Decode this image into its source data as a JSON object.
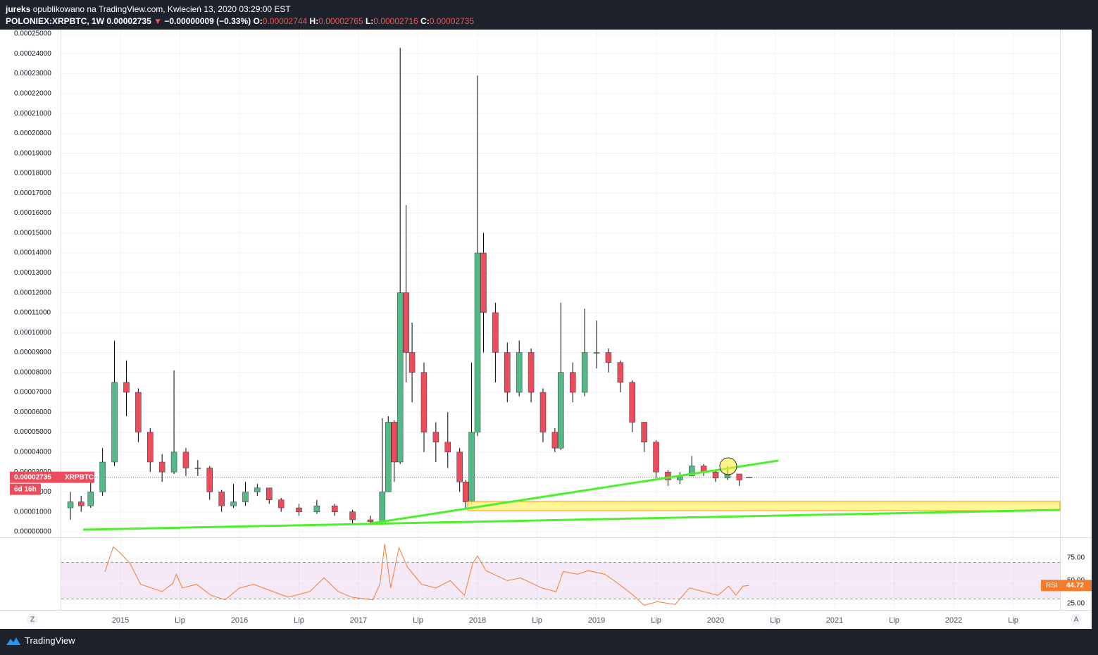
{
  "header": {
    "author": "jureks",
    "published": "opublikowano na TradingView.com, Kwiecień 13, 2020 03:29:00 EST",
    "symbol": "POLONIEX:XRPBTC, 1W",
    "price": "0.00002735",
    "arrow": "▼",
    "change": "−0.00000009 (−0.33%)",
    "ohlc": [
      {
        "key": "O:",
        "value": "0.00002744"
      },
      {
        "key": "H:",
        "value": "0.00002765"
      },
      {
        "key": "L:",
        "value": "0.00002716"
      },
      {
        "key": "C:",
        "value": "0.00002735"
      }
    ]
  },
  "chart_data": {
    "type": "candlestick",
    "symbol": "XRPBTC",
    "countdown": "6d 16h",
    "up_color": "#53b987",
    "down_color": "#eb4d5c",
    "grid": true,
    "xlim": [
      2014.503,
      2022.893
    ],
    "xticks": [
      2015,
      {
        "value": 2015.5,
        "label": "Lip"
      },
      2016,
      {
        "value": 2016.5,
        "label": "Lip"
      },
      2017,
      {
        "value": 2017.5,
        "label": "Lip"
      },
      2018,
      {
        "value": 2018.5,
        "label": "Lip"
      },
      2019,
      {
        "value": 2019.5,
        "label": "Lip"
      },
      2020,
      {
        "value": 2020.5,
        "label": "Lip"
      },
      2021,
      {
        "value": 2021.5,
        "label": "Lip"
      },
      2022,
      {
        "value": 2022.5,
        "label": "Lip"
      }
    ],
    "ylim": [
      -2.48e-06,
      0.00025212
    ],
    "yticks": [
      {
        "value": 0.00025,
        "label": "0.00025000"
      },
      {
        "value": 0.00024,
        "label": "0.00024000"
      },
      {
        "value": 0.00023,
        "label": "0.00023000"
      },
      {
        "value": 0.00022,
        "label": "0.00022000"
      },
      {
        "value": 0.00021,
        "label": "0.00021000"
      },
      {
        "value": 0.0002,
        "label": "0.00020000"
      },
      {
        "value": 0.00019,
        "label": "0.00019000"
      },
      {
        "value": 0.00018,
        "label": "0.00018000"
      },
      {
        "value": 0.00017,
        "label": "0.00017000"
      },
      {
        "value": 0.00016,
        "label": "0.00016000"
      },
      {
        "value": 0.00015,
        "label": "0.00015000"
      },
      {
        "value": 0.00014,
        "label": "0.00014000"
      },
      {
        "value": 0.00013,
        "label": "0.00013000"
      },
      {
        "value": 0.00012,
        "label": "0.00012000"
      },
      {
        "value": 0.00011,
        "label": "0.00011000"
      },
      {
        "value": 0.0001,
        "label": "0.00010000"
      },
      {
        "value": 9e-05,
        "label": "0.00009000"
      },
      {
        "value": 8e-05,
        "label": "0.00008000"
      },
      {
        "value": 7e-05,
        "label": "0.00007000"
      },
      {
        "value": 6e-05,
        "label": "0.00006000"
      },
      {
        "value": 5e-05,
        "label": "0.00005000"
      },
      {
        "value": 4e-05,
        "label": "0.00004000"
      },
      {
        "value": 3e-05,
        "label": "0.00003000"
      },
      {
        "value": 2e-05,
        "label": "0.00002000"
      },
      {
        "value": 1e-05,
        "label": "0.00001000"
      },
      {
        "value": 0,
        "label": "0.00000000"
      }
    ],
    "x": [
      2014.58,
      2014.67,
      2014.75,
      2014.85,
      2014.95,
      2015.05,
      2015.15,
      2015.25,
      2015.35,
      2015.45,
      2015.55,
      2015.65,
      2015.75,
      2015.85,
      2015.95,
      2016.05,
      2016.15,
      2016.25,
      2016.35,
      2016.5,
      2016.65,
      2016.8,
      2016.95,
      2017.1,
      2017.2,
      2017.25,
      2017.3,
      2017.35,
      2017.4,
      2017.45,
      2017.55,
      2017.65,
      2017.75,
      2017.85,
      2017.9,
      2017.95,
      2018.0,
      2018.05,
      2018.15,
      2018.25,
      2018.35,
      2018.45,
      2018.55,
      2018.65,
      2018.7,
      2018.8,
      2018.9,
      2019.0,
      2019.1,
      2019.2,
      2019.3,
      2019.4,
      2019.5,
      2019.6,
      2019.7,
      2019.8,
      2019.9,
      2020.0,
      2020.1,
      2020.2,
      2020.28
    ],
    "open": [
      1.2e-05,
      1.5e-05,
      1.3e-05,
      2e-05,
      3.5e-05,
      7.5e-05,
      7e-05,
      5e-05,
      3.5e-05,
      3e-05,
      4e-05,
      3.2e-05,
      3.2e-05,
      2e-05,
      1.3e-05,
      1.5e-05,
      2e-05,
      2.2e-05,
      1.6e-05,
      1.2e-05,
      1e-05,
      1.3e-05,
      1e-05,
      6e-06,
      5e-06,
      2e-05,
      5.5e-05,
      3.5e-05,
      0.00012,
      9e-05,
      8e-05,
      5e-05,
      4.5e-05,
      4e-05,
      2.5e-05,
      1.5e-05,
      5e-05,
      0.00014,
      0.00011,
      9e-05,
      7e-05,
      9e-05,
      7e-05,
      5e-05,
      4.2e-05,
      8e-05,
      7e-05,
      9e-05,
      9e-05,
      8.5e-05,
      7.5e-05,
      5.5e-05,
      4.5e-05,
      3e-05,
      2.6e-05,
      2.8e-05,
      3.3e-05,
      3e-05,
      2.7e-05,
      2.9e-05,
      2.744e-05
    ],
    "high": [
      2e-05,
      1.8e-05,
      2.8e-05,
      4.2e-05,
      9.6e-05,
      8.6e-05,
      7.2e-05,
      5.2e-05,
      3.9e-05,
      8.1e-05,
      4.2e-05,
      3.6e-05,
      3.3e-05,
      2.1e-05,
      2.4e-05,
      2.5e-05,
      2.4e-05,
      2.2e-05,
      1.7e-05,
      1.4e-05,
      1.6e-05,
      1.4e-05,
      1.1e-05,
      8e-06,
      5.7e-05,
      5.8e-05,
      5.6e-05,
      0.000243,
      0.000164,
      0.000105,
      8.5e-05,
      5.5e-05,
      6e-05,
      4.2e-05,
      2.6e-05,
      8.5e-05,
      0.000229,
      0.00015,
      0.000115,
      9.5e-05,
      9.6e-05,
      9.2e-05,
      7.2e-05,
      5.2e-05,
      0.000115,
      8.5e-05,
      0.000112,
      0.000106,
      9.2e-05,
      8.6e-05,
      7.6e-05,
      5.5e-05,
      4.6e-05,
      3.1e-05,
      3e-05,
      3.8e-05,
      3.4e-05,
      3.1e-05,
      3.3e-05,
      2.9e-05,
      2.765e-05
    ],
    "low": [
      6e-06,
      1e-05,
      1.2e-05,
      1.8e-05,
      3.3e-05,
      5.8e-05,
      4.5e-05,
      3e-05,
      2.5e-05,
      2.9e-05,
      2.8e-05,
      2.8e-05,
      1.6e-05,
      1e-05,
      1.2e-05,
      1.3e-05,
      1.8e-05,
      1.4e-05,
      1e-05,
      8e-06,
      9e-06,
      8e-06,
      4e-06,
      4e-06,
      5e-06,
      2e-05,
      2.5e-05,
      3.4e-05,
      7.5e-05,
      6.5e-05,
      4e-05,
      3.5e-05,
      3.2e-05,
      2e-05,
      1.1e-05,
      1.4e-05,
      4.8e-05,
      9e-05,
      7.5e-05,
      6.5e-05,
      6.8e-05,
      6.5e-05,
      4.5e-05,
      4e-05,
      4.1e-05,
      6.5e-05,
      6.8e-05,
      8.2e-05,
      8e-05,
      7e-05,
      5e-05,
      4e-05,
      2.7e-05,
      2.3e-05,
      2.4e-05,
      2.8e-05,
      2.8e-05,
      2.5e-05,
      2.6e-05,
      2.3e-05,
      2.716e-05
    ],
    "close": [
      1.5e-05,
      1.3e-05,
      2e-05,
      3.5e-05,
      7.5e-05,
      7e-05,
      5e-05,
      3.5e-05,
      3e-05,
      4e-05,
      3.2e-05,
      3.2e-05,
      2e-05,
      1.3e-05,
      1.5e-05,
      2e-05,
      2.2e-05,
      1.6e-05,
      1.2e-05,
      1e-05,
      1.3e-05,
      1e-05,
      6e-06,
      5e-06,
      2e-05,
      5.5e-05,
      3.5e-05,
      0.00012,
      9e-05,
      8e-05,
      5e-05,
      4.5e-05,
      4e-05,
      2.5e-05,
      1.5e-05,
      5e-05,
      0.00014,
      0.00011,
      9e-05,
      7e-05,
      9e-05,
      7e-05,
      5e-05,
      4.2e-05,
      8e-05,
      7e-05,
      9e-05,
      9e-05,
      8.5e-05,
      7.5e-05,
      5.5e-05,
      4.5e-05,
      3e-05,
      2.6e-05,
      2.8e-05,
      3.3e-05,
      3e-05,
      2.7e-05,
      2.9e-05,
      2.6e-05,
      2.735e-05
    ],
    "rsi": {
      "name": "RSI",
      "color": "#f57c2c",
      "band_color": "#9c27b0",
      "ylim": [
        18,
        95
      ],
      "yticks": [
        {
          "value": 75,
          "label": "75.00"
        },
        {
          "value": 50,
          "label": "50.00"
        },
        {
          "value": 25,
          "label": "25.00"
        }
      ],
      "bands": [
        30,
        70
      ],
      "x": [
        2014.87,
        2014.94,
        2015.0,
        2015.08,
        2015.17,
        2015.35,
        2015.44,
        2015.47,
        2015.52,
        2015.64,
        2015.76,
        2015.88,
        2016.0,
        2016.12,
        2016.24,
        2016.41,
        2016.59,
        2016.71,
        2016.83,
        2016.94,
        2017.12,
        2017.18,
        2017.22,
        2017.27,
        2017.34,
        2017.41,
        2017.53,
        2017.65,
        2017.77,
        2017.89,
        2017.96,
        2018.0,
        2018.07,
        2018.25,
        2018.36,
        2018.54,
        2018.66,
        2018.72,
        2018.84,
        2018.93,
        2019.07,
        2019.19,
        2019.31,
        2019.4,
        2019.51,
        2019.66,
        2019.78,
        2019.9,
        2020.02,
        2020.11,
        2020.17,
        2020.23,
        2020.28
      ],
      "values": [
        59.6,
        87,
        80,
        69,
        46,
        38,
        47,
        57,
        42,
        46,
        34,
        29,
        42,
        46,
        40,
        32,
        38,
        53,
        38,
        32,
        29,
        46,
        90,
        42,
        86,
        65,
        46,
        42,
        50,
        34,
        69,
        77,
        61,
        50,
        53,
        42,
        38,
        60,
        57,
        61,
        57,
        46,
        34,
        23,
        27,
        24,
        42,
        38,
        34,
        44,
        34,
        44,
        44.72
      ]
    }
  }
}
